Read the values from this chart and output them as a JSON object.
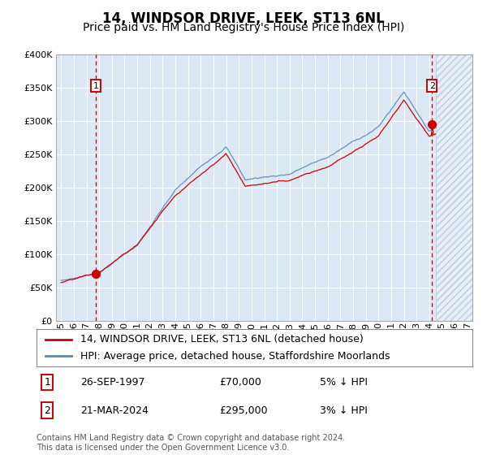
{
  "title": "14, WINDSOR DRIVE, LEEK, ST13 6NL",
  "subtitle": "Price paid vs. HM Land Registry's House Price Index (HPI)",
  "ylim": [
    0,
    400000
  ],
  "yticks": [
    0,
    50000,
    100000,
    150000,
    200000,
    250000,
    300000,
    350000,
    400000
  ],
  "ytick_labels": [
    "£0",
    "£50K",
    "£100K",
    "£150K",
    "£200K",
    "£250K",
    "£300K",
    "£350K",
    "£400K"
  ],
  "xlim_start": 1994.6,
  "xlim_end": 2027.4,
  "hpi_future_start": 2024.5,
  "transaction1": {
    "date_num": 1997.73,
    "price": 70000,
    "label": "1"
  },
  "transaction2": {
    "date_num": 2024.22,
    "price": 295000,
    "label": "2"
  },
  "line_color_price": "#cc0000",
  "line_color_hpi": "#5588bb",
  "background_color": "#dce9f5",
  "grid_color": "#ffffff",
  "legend_label1": "14, WINDSOR DRIVE, LEEK, ST13 6NL (detached house)",
  "legend_label2": "HPI: Average price, detached house, Staffordshire Moorlands",
  "annotation1_date": "26-SEP-1997",
  "annotation1_price": "£70,000",
  "annotation1_hpi": "5% ↓ HPI",
  "annotation2_date": "21-MAR-2024",
  "annotation2_price": "£295,000",
  "annotation2_hpi": "3% ↓ HPI",
  "footer": "Contains HM Land Registry data © Crown copyright and database right 2024.\nThis data is licensed under the Open Government Licence v3.0.",
  "title_fontsize": 12,
  "subtitle_fontsize": 10,
  "tick_fontsize": 8,
  "legend_fontsize": 9,
  "annotation_fontsize": 9
}
